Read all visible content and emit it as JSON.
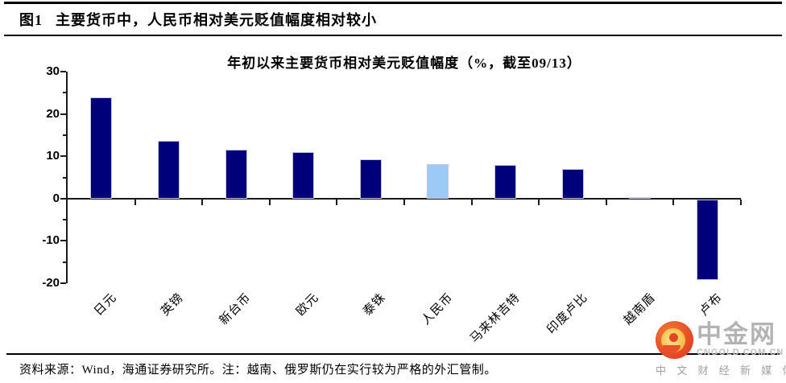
{
  "header": {
    "figure_label": "图1",
    "title": "主要货币中，人民币相对美元贬值幅度相对较小"
  },
  "chart_data": {
    "type": "bar",
    "title": "年初以来主要货币相对美元贬值幅度（%，截至09/13）",
    "categories": [
      "日元",
      "英镑",
      "新台币",
      "欧元",
      "泰铢",
      "人民币",
      "马来林吉特",
      "印度卢比",
      "越南盾",
      "卢布"
    ],
    "values": [
      24.0,
      13.7,
      11.6,
      11.0,
      9.3,
      8.2,
      7.9,
      7.0,
      0.4,
      -19.0
    ],
    "xlabel": "",
    "ylabel": "",
    "ylim": [
      -20,
      30
    ],
    "yticks": [
      30,
      20,
      10,
      0,
      -10,
      -20
    ],
    "minor_yticks": [
      25,
      15,
      5,
      -5,
      -15
    ],
    "grid": false,
    "legend": "none",
    "bar_color": "#00007B",
    "highlight_index": 5,
    "highlight_color": "#9CC9F5",
    "highlight_category": "人民币"
  },
  "footer": {
    "source_note": "资料来源：Wind，海通证券研究所。注：越南、俄罗斯仍在实行较为严格的外汇管制。"
  },
  "watermark": {
    "brand": "中金网",
    "domain": "CNGOLD.COM.CN",
    "tagline": "中 文 财 经 新 媒 体"
  }
}
